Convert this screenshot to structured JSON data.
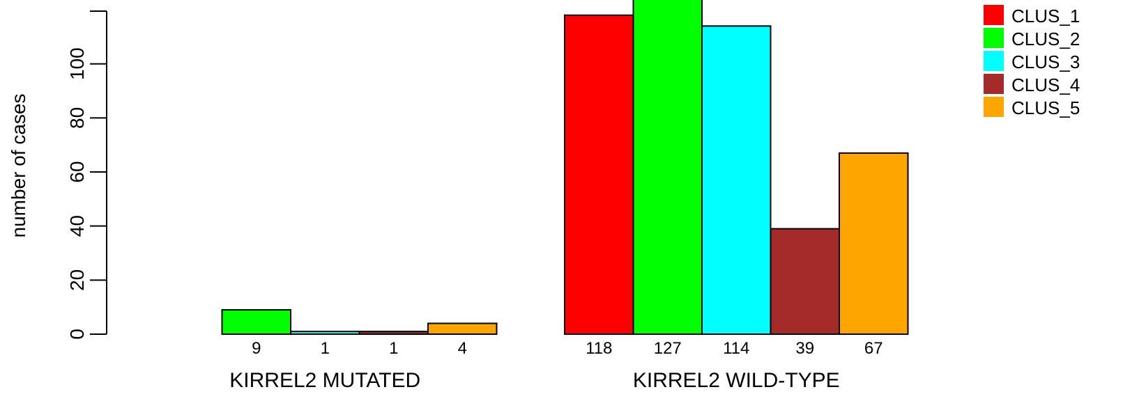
{
  "chart_data": {
    "type": "bar",
    "ylabel": "number of cases",
    "ylim": [
      0,
      120
    ],
    "yticks": [
      0,
      20,
      40,
      60,
      80,
      100
    ],
    "groups": [
      "KIRREL2 MUTATED",
      "KIRREL2 WILD-TYPE"
    ],
    "series": [
      {
        "name": "CLUS_1",
        "color": "#ff0000",
        "values": [
          0,
          118
        ],
        "labels": [
          "",
          "118"
        ]
      },
      {
        "name": "CLUS_2",
        "color": "#00ff00",
        "values": [
          9,
          127
        ],
        "labels": [
          "9",
          "127"
        ]
      },
      {
        "name": "CLUS_3",
        "color": "#00ffff",
        "values": [
          1,
          114
        ],
        "labels": [
          "1",
          "114"
        ]
      },
      {
        "name": "CLUS_4",
        "color": "#a52a2a",
        "values": [
          1,
          39
        ],
        "labels": [
          "1",
          "39"
        ]
      },
      {
        "name": "CLUS_5",
        "color": "#ffa500",
        "values": [
          4,
          67
        ],
        "labels": [
          "4",
          "67"
        ]
      }
    ],
    "legend_position": "top-right"
  }
}
